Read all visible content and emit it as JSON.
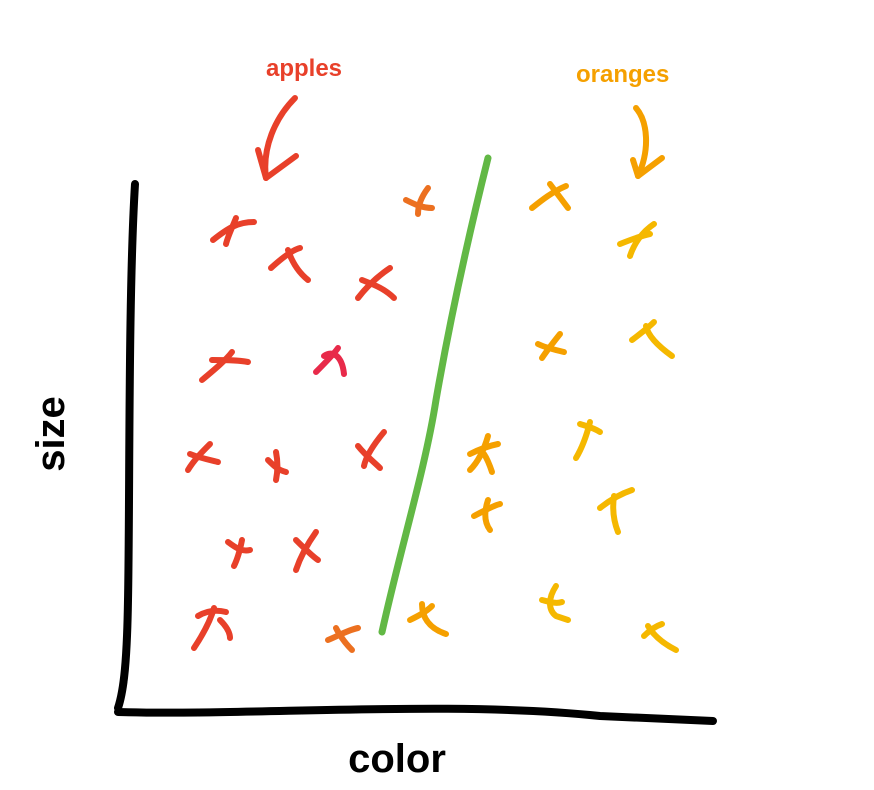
{
  "labels": {
    "apples": "apples",
    "oranges": "oranges",
    "x_axis": "color",
    "y_axis": "size"
  },
  "colors": {
    "apples": "#e8402a",
    "oranges": "#f5a000",
    "boundary": "#62b845",
    "axes": "#000000"
  }
}
